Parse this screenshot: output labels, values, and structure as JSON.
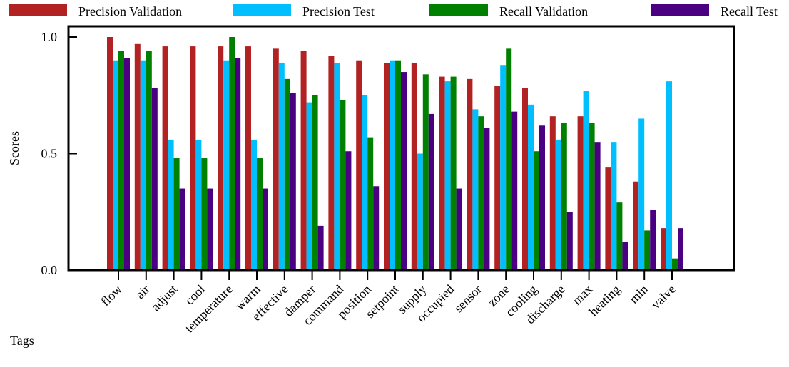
{
  "chart_data": {
    "type": "bar",
    "xlabel": "Tags",
    "ylabel": "Scores",
    "ylim": [
      0,
      1.0
    ],
    "yticks": [
      "0.0",
      "0.5",
      "1.0"
    ],
    "ytick_values": [
      0,
      0.5,
      1.0
    ],
    "legend_position": "top",
    "categories": [
      "flow",
      "air",
      "adjust",
      "cool",
      "temperature",
      "warm",
      "effective",
      "damper",
      "command",
      "position",
      "setpoint",
      "supply",
      "occupied",
      "sensor",
      "zone",
      "cooling",
      "discharge",
      "max",
      "heating",
      "min",
      "valve"
    ],
    "series": [
      {
        "name": "Precision Validation",
        "color": "#b22222",
        "values": [
          1.0,
          0.97,
          0.96,
          0.96,
          0.96,
          0.96,
          0.95,
          0.94,
          0.92,
          0.9,
          0.89,
          0.89,
          0.83,
          0.82,
          0.79,
          0.78,
          0.66,
          0.66,
          0.44,
          0.38,
          0.18
        ]
      },
      {
        "name": "Precision Test",
        "color": "#00bfff",
        "values": [
          0.9,
          0.9,
          0.56,
          0.56,
          0.9,
          0.56,
          0.89,
          0.72,
          0.89,
          0.75,
          0.9,
          0.5,
          0.81,
          0.69,
          0.88,
          0.71,
          0.56,
          0.77,
          0.55,
          0.65,
          0.81
        ]
      },
      {
        "name": "Recall Validation",
        "color": "#008000",
        "values": [
          0.94,
          0.94,
          0.48,
          0.48,
          1.0,
          0.48,
          0.82,
          0.75,
          0.73,
          0.57,
          0.9,
          0.84,
          0.83,
          0.66,
          0.95,
          0.51,
          0.63,
          0.63,
          0.29,
          0.17,
          0.05
        ]
      },
      {
        "name": "Recall Test",
        "color": "#4b0082",
        "values": [
          0.91,
          0.78,
          0.35,
          0.35,
          0.91,
          0.35,
          0.76,
          0.19,
          0.51,
          0.36,
          0.85,
          0.67,
          0.35,
          0.61,
          0.68,
          0.62,
          0.25,
          0.55,
          0.12,
          0.26,
          0.18
        ]
      }
    ]
  }
}
